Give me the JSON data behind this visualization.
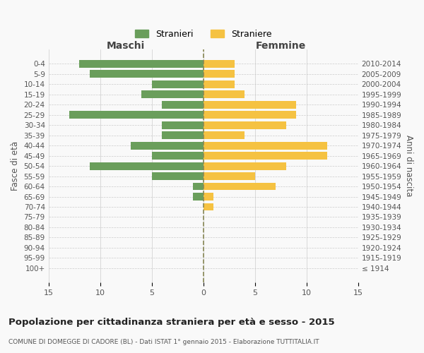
{
  "age_groups": [
    "100+",
    "95-99",
    "90-94",
    "85-89",
    "80-84",
    "75-79",
    "70-74",
    "65-69",
    "60-64",
    "55-59",
    "50-54",
    "45-49",
    "40-44",
    "35-39",
    "30-34",
    "25-29",
    "20-24",
    "15-19",
    "10-14",
    "5-9",
    "0-4"
  ],
  "birth_years": [
    "≤ 1914",
    "1915-1919",
    "1920-1924",
    "1925-1929",
    "1930-1934",
    "1935-1939",
    "1940-1944",
    "1945-1949",
    "1950-1954",
    "1955-1959",
    "1960-1964",
    "1965-1969",
    "1970-1974",
    "1975-1979",
    "1980-1984",
    "1985-1989",
    "1990-1994",
    "1995-1999",
    "2000-2004",
    "2005-2009",
    "2010-2014"
  ],
  "maschi": [
    0,
    0,
    0,
    0,
    0,
    0,
    0,
    1,
    1,
    5,
    11,
    5,
    7,
    4,
    4,
    13,
    4,
    6,
    5,
    11,
    12
  ],
  "femmine": [
    0,
    0,
    0,
    0,
    0,
    0,
    1,
    1,
    7,
    5,
    8,
    12,
    12,
    4,
    8,
    9,
    9,
    4,
    3,
    3,
    3
  ],
  "color_maschi": "#6a9e5b",
  "color_femmine": "#f5c242",
  "title": "Popolazione per cittadinanza straniera per età e sesso - 2015",
  "subtitle": "COMUNE DI DOMEGGE DI CADORE (BL) - Dati ISTAT 1° gennaio 2015 - Elaborazione TUTTITALIA.IT",
  "xlabel_left": "Maschi",
  "xlabel_right": "Femmine",
  "ylabel_left": "Fasce di età",
  "ylabel_right": "Anni di nascita",
  "legend_male": "Stranieri",
  "legend_female": "Straniere",
  "xlim": 15,
  "background_color": "#f9f9f9",
  "grid_color": "#cccccc"
}
